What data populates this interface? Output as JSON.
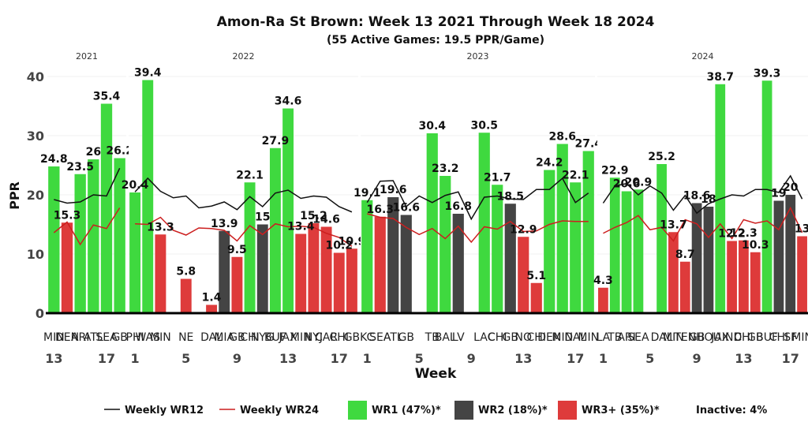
{
  "title": "Amon-Ra St Brown: Week 13 2021 Through Week 18 2024",
  "subtitle": "(55 Active Games: 19.5 PPR/Game)",
  "colors": {
    "wr1": "#3fd93f",
    "wr2": "#444444",
    "wr3": "#de3b3b",
    "wr12_line": "#111111",
    "wr24_line": "#cc1f1f"
  },
  "chart_data": {
    "type": "bar",
    "ylabel": "PPR",
    "xlabel": "Week",
    "ylim": [
      0,
      42
    ],
    "yticks": [
      0,
      10,
      20,
      30,
      40
    ],
    "legend": {
      "wr12": "Weekly WR12",
      "wr24": "Weekly WR24",
      "wr1": "WR1 (47%)*",
      "wr2": "WR2 (18%)*",
      "wr3": "WR3+ (35%)*",
      "inactive": "Inactive: 4%"
    },
    "panels": [
      {
        "year": "2021",
        "weeks": [
          13,
          14,
          15,
          16,
          17,
          18
        ],
        "week_ticks": [
          13,
          17
        ],
        "opponents": [
          "MIN",
          "DEN",
          "ARI",
          "ATL",
          "SEA",
          "GB"
        ],
        "values": [
          24.8,
          15.3,
          23.5,
          26.0,
          35.4,
          26.2
        ],
        "labels": [
          "24.8",
          "15.3",
          "23.5",
          "26",
          "35.4",
          "26.2"
        ],
        "tiers": [
          "wr1",
          "wr3",
          "wr1",
          "wr1",
          "wr1",
          "wr1"
        ],
        "wr12": [
          19.2,
          18.6,
          18.8,
          20.0,
          19.8,
          24.5
        ],
        "wr24": [
          13.6,
          15.4,
          11.6,
          14.9,
          14.3,
          17.8
        ]
      },
      {
        "year": "2022",
        "weeks": [
          1,
          2,
          3,
          4,
          5,
          6,
          7,
          8,
          9,
          10,
          11,
          12,
          13,
          14,
          15,
          16,
          17,
          18
        ],
        "week_ticks": [
          1,
          5,
          9,
          13,
          17
        ],
        "opponents": [
          "PHI",
          "WAS",
          "MIN",
          "",
          "NE",
          "",
          "DAL",
          "MIA",
          "GB",
          "CHI",
          "NYG",
          "BUF",
          "JAX",
          "MIN",
          "NYJ",
          "CAR",
          "CHI",
          "GB"
        ],
        "values": [
          20.4,
          39.4,
          13.3,
          null,
          5.8,
          null,
          1.4,
          13.9,
          9.5,
          22.1,
          15.0,
          27.9,
          34.6,
          13.4,
          15.2,
          14.6,
          10.2,
          10.9
        ],
        "labels": [
          "20.4",
          "39.4",
          "13.3",
          "",
          "5.8",
          "",
          "1.4",
          "13.9",
          "9.5",
          "22.1",
          "15",
          "27.9",
          "34.6",
          "13.4",
          "15.2",
          "14.6",
          "10.2",
          "10.9"
        ],
        "tiers": [
          "wr1",
          "wr1",
          "wr3",
          "",
          "wr3",
          "",
          "wr3",
          "wr2",
          "wr3",
          "wr1",
          "wr2",
          "wr1",
          "wr1",
          "wr3",
          "wr3",
          "wr3",
          "wr3",
          "wr3"
        ],
        "wr12": [
          20.5,
          22.8,
          20.6,
          19.5,
          19.8,
          17.8,
          18.1,
          18.8,
          17.5,
          19.7,
          18.0,
          20.3,
          20.8,
          19.4,
          19.8,
          19.6,
          18.0,
          17.1
        ],
        "wr24": [
          15.1,
          15.0,
          16.2,
          14.0,
          13.2,
          14.4,
          14.3,
          14.0,
          12.2,
          14.8,
          13.3,
          15.1,
          14.6,
          14.7,
          14.5,
          13.5,
          12.8,
          11.3
        ]
      },
      {
        "year": "2023",
        "weeks": [
          1,
          2,
          3,
          4,
          5,
          6,
          7,
          8,
          9,
          10,
          11,
          12,
          13,
          14,
          15,
          16,
          17,
          18
        ],
        "week_ticks": [
          1,
          5,
          9,
          13,
          17
        ],
        "opponents": [
          "KC",
          "SEA",
          "ATL",
          "GB",
          "",
          "TB",
          "BAL",
          "LV",
          "",
          "LAC",
          "CHI",
          "GB",
          "NO",
          "CHI",
          "DEN",
          "MIN",
          "DAL",
          "MIN"
        ],
        "values": [
          19.1,
          16.3,
          19.6,
          16.6,
          null,
          30.4,
          23.2,
          16.8,
          null,
          30.5,
          21.7,
          18.5,
          12.9,
          5.1,
          24.2,
          28.6,
          22.1,
          27.4
        ],
        "labels": [
          "19.1",
          "16.3",
          "19.6",
          "16.6",
          "",
          "30.4",
          "23.2",
          "16.8",
          "",
          "30.5",
          "21.7",
          "18.5",
          "12.9",
          "5.1",
          "24.2",
          "28.6",
          "22.1",
          "27.4"
        ],
        "tiers": [
          "wr1",
          "wr3",
          "wr2",
          "wr2",
          "",
          "wr1",
          "wr1",
          "wr2",
          "",
          "wr1",
          "wr1",
          "wr2",
          "wr3",
          "wr3",
          "wr1",
          "wr1",
          "wr1",
          "wr1"
        ],
        "wr12": [
          18.7,
          22.3,
          22.4,
          18.0,
          19.8,
          18.7,
          19.9,
          20.5,
          15.9,
          19.6,
          19.8,
          19.3,
          19.2,
          20.9,
          20.9,
          22.8,
          18.7,
          20.3
        ],
        "wr24": [
          16.8,
          16.2,
          16.0,
          14.5,
          13.3,
          14.3,
          12.6,
          14.7,
          12.0,
          14.6,
          14.2,
          15.5,
          13.8,
          13.9,
          15.0,
          15.6,
          15.5,
          15.5
        ]
      },
      {
        "year": "2024",
        "weeks": [
          1,
          2,
          3,
          4,
          5,
          6,
          7,
          8,
          9,
          10,
          11,
          12,
          13,
          14,
          15,
          16,
          17,
          18
        ],
        "week_ticks": [
          1,
          5,
          9,
          13,
          17
        ],
        "opponents": [
          "LA",
          "TB",
          "ARI",
          "SEA",
          "",
          "DAL",
          "MIN",
          "TEN",
          "GB",
          "HOU",
          "JAX",
          "IND",
          "CHI",
          "GB",
          "BUF",
          "CHI",
          "SF",
          "MIN"
        ],
        "values": [
          4.3,
          22.9,
          20.6,
          20.9,
          null,
          25.2,
          13.7,
          8.7,
          18.6,
          18.0,
          38.7,
          12.2,
          12.3,
          10.3,
          39.3,
          19.0,
          20.0,
          13.0
        ],
        "labels": [
          "4.3",
          "22.9",
          "20.6",
          "20.9",
          "",
          "25.2",
          "13.7",
          "8.7",
          "18.6",
          "18",
          "38.7",
          "12.2",
          "12.3",
          "10.3",
          "39.3",
          "19",
          "20",
          "13"
        ],
        "tiers": [
          "wr3",
          "wr1",
          "wr1",
          "wr1",
          "",
          "wr1",
          "wr3",
          "wr3",
          "wr2",
          "wr2",
          "wr1",
          "wr3",
          "wr3",
          "wr3",
          "wr1",
          "wr2",
          "wr2",
          "wr3"
        ],
        "wr12": [
          18.6,
          21.5,
          21.9,
          20.0,
          21.5,
          20.3,
          17.4,
          19.9,
          16.9,
          18.5,
          19.3,
          20.0,
          19.8,
          20.9,
          20.9,
          20.4,
          23.2,
          19.3
        ],
        "wr24": [
          13.5,
          14.5,
          15.3,
          16.5,
          14.1,
          14.5,
          12.2,
          15.8,
          15.1,
          12.8,
          15.1,
          12.6,
          15.8,
          15.2,
          15.6,
          14.1,
          17.8,
          13.6
        ]
      }
    ]
  }
}
